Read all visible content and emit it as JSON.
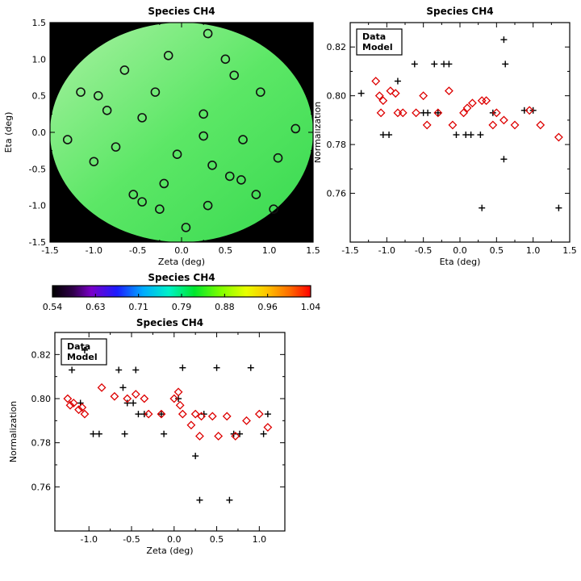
{
  "figure": {
    "background": "#ffffff",
    "accent_model_color": "#dd0000",
    "accent_data_color": "#000000"
  },
  "chart_data": [
    {
      "id": "map",
      "type": "scatter",
      "variant": "spatial-map",
      "title": "Species CH4",
      "xlabel": "Zeta (deg)",
      "ylabel": "Eta (deg)",
      "xlim": [
        -1.5,
        1.5
      ],
      "ylim": [
        -1.5,
        1.5
      ],
      "xticks": [
        -1.5,
        -1.0,
        -0.5,
        0.0,
        0.5,
        1.0,
        1.5
      ],
      "yticks": [
        -1.5,
        -1.0,
        -0.5,
        0.0,
        0.5,
        1.0,
        1.5
      ],
      "xdec": 1,
      "ydec": 1,
      "plot_bg": "#000000",
      "disk": {
        "cx": 0,
        "cy": 0,
        "r": 1.5,
        "gradient": [
          {
            "pos": 0,
            "color": "#a9f1a2"
          },
          {
            "pos": 0.5,
            "color": "#5ce766"
          },
          {
            "pos": 1,
            "color": "#37d94f"
          }
        ]
      },
      "series": [
        {
          "name": "Footprints",
          "marker": "circle",
          "color": "#111111",
          "points": [
            [
              0.3,
              1.35
            ],
            [
              -0.15,
              1.05
            ],
            [
              0.5,
              1.0
            ],
            [
              -0.65,
              0.85
            ],
            [
              0.6,
              0.78
            ],
            [
              -1.15,
              0.55
            ],
            [
              -0.95,
              0.5
            ],
            [
              -0.3,
              0.55
            ],
            [
              0.9,
              0.55
            ],
            [
              -0.85,
              0.3
            ],
            [
              0.25,
              0.25
            ],
            [
              -0.45,
              0.2
            ],
            [
              1.3,
              0.05
            ],
            [
              -1.3,
              -0.1
            ],
            [
              0.25,
              -0.05
            ],
            [
              0.7,
              -0.1
            ],
            [
              -0.75,
              -0.2
            ],
            [
              -0.05,
              -0.3
            ],
            [
              1.1,
              -0.35
            ],
            [
              -1.0,
              -0.4
            ],
            [
              0.35,
              -0.45
            ],
            [
              0.55,
              -0.6
            ],
            [
              0.68,
              -0.65
            ],
            [
              -0.2,
              -0.7
            ],
            [
              -0.55,
              -0.85
            ],
            [
              -0.45,
              -0.95
            ],
            [
              0.85,
              -0.85
            ],
            [
              -0.25,
              -1.05
            ],
            [
              0.3,
              -1.0
            ],
            [
              1.05,
              -1.05
            ],
            [
              0.05,
              -1.3
            ]
          ]
        }
      ]
    },
    {
      "id": "scatter-eta",
      "type": "scatter",
      "title": "Species CH4",
      "xlabel": "Eta (deg)",
      "ylabel": "Normalization",
      "xlim": [
        -1.5,
        1.5
      ],
      "ylim": [
        0.74,
        0.83
      ],
      "xticks": [
        -1.5,
        -1.0,
        -0.5,
        0.0,
        0.5,
        1.0,
        1.5
      ],
      "yticks": [
        0.76,
        0.78,
        0.8,
        0.82
      ],
      "xdec": 1,
      "ydec": 2,
      "legend": true,
      "series": [
        {
          "name": "Data",
          "marker": "plus",
          "color": "#000000",
          "points": [
            [
              -1.35,
              0.801
            ],
            [
              -1.05,
              0.784
            ],
            [
              -0.97,
              0.784
            ],
            [
              -0.85,
              0.806
            ],
            [
              -0.62,
              0.813
            ],
            [
              -0.5,
              0.793
            ],
            [
              -0.44,
              0.793
            ],
            [
              -0.35,
              0.813
            ],
            [
              -0.3,
              0.793
            ],
            [
              -0.22,
              0.813
            ],
            [
              -0.15,
              0.813
            ],
            [
              -0.05,
              0.784
            ],
            [
              0.08,
              0.784
            ],
            [
              0.15,
              0.784
            ],
            [
              0.28,
              0.784
            ],
            [
              0.3,
              0.754
            ],
            [
              0.45,
              0.793
            ],
            [
              0.6,
              0.823
            ],
            [
              0.62,
              0.813
            ],
            [
              0.6,
              0.774
            ],
            [
              0.88,
              0.794
            ],
            [
              1.0,
              0.794
            ],
            [
              1.35,
              0.754
            ]
          ]
        },
        {
          "name": "Model",
          "marker": "diamond",
          "color": "#dd0000",
          "points": [
            [
              -1.15,
              0.806
            ],
            [
              -1.1,
              0.8
            ],
            [
              -1.05,
              0.798
            ],
            [
              -1.08,
              0.793
            ],
            [
              -0.95,
              0.802
            ],
            [
              -0.88,
              0.801
            ],
            [
              -0.85,
              0.793
            ],
            [
              -0.78,
              0.793
            ],
            [
              -0.6,
              0.793
            ],
            [
              -0.5,
              0.8
            ],
            [
              -0.45,
              0.788
            ],
            [
              -0.3,
              0.793
            ],
            [
              -0.15,
              0.802
            ],
            [
              -0.1,
              0.788
            ],
            [
              0.05,
              0.793
            ],
            [
              0.1,
              0.795
            ],
            [
              0.17,
              0.797
            ],
            [
              0.3,
              0.798
            ],
            [
              0.36,
              0.798
            ],
            [
              0.45,
              0.788
            ],
            [
              0.5,
              0.793
            ],
            [
              0.6,
              0.79
            ],
            [
              0.75,
              0.788
            ],
            [
              0.95,
              0.794
            ],
            [
              1.1,
              0.788
            ],
            [
              1.35,
              0.783
            ]
          ]
        }
      ]
    },
    {
      "id": "colorbar",
      "type": "colorbar",
      "title": "Species CH4",
      "labels": [
        "0.54",
        "0.63",
        "0.71",
        "0.79",
        "0.88",
        "0.96",
        "1.04"
      ],
      "gradient": [
        {
          "pos": 0,
          "color": "#000000"
        },
        {
          "pos": 0.08,
          "color": "#30004a"
        },
        {
          "pos": 0.15,
          "color": "#7a00c8"
        },
        {
          "pos": 0.25,
          "color": "#1c1cff"
        },
        {
          "pos": 0.35,
          "color": "#00aaff"
        },
        {
          "pos": 0.45,
          "color": "#00f2c8"
        },
        {
          "pos": 0.55,
          "color": "#00e62e"
        },
        {
          "pos": 0.65,
          "color": "#7dff00"
        },
        {
          "pos": 0.75,
          "color": "#e8ff00"
        },
        {
          "pos": 0.83,
          "color": "#ffc400"
        },
        {
          "pos": 0.92,
          "color": "#ff6a00"
        },
        {
          "pos": 1,
          "color": "#ff0000"
        }
      ]
    },
    {
      "id": "scatter-zeta",
      "type": "scatter",
      "title": "Species CH4",
      "xlabel": "Zeta (deg)",
      "ylabel": "Normalization",
      "xlim": [
        -1.4,
        1.3
      ],
      "ylim": [
        0.74,
        0.83
      ],
      "xticks": [
        -1.0,
        -0.5,
        0.0,
        0.5,
        1.0
      ],
      "yticks": [
        0.76,
        0.78,
        0.8,
        0.82
      ],
      "xdec": 1,
      "ydec": 2,
      "legend": true,
      "series": [
        {
          "name": "Data",
          "marker": "plus",
          "color": "#000000",
          "points": [
            [
              -1.2,
              0.813
            ],
            [
              -1.1,
              0.798
            ],
            [
              -1.05,
              0.822
            ],
            [
              -0.95,
              0.784
            ],
            [
              -0.88,
              0.784
            ],
            [
              -0.65,
              0.813
            ],
            [
              -0.6,
              0.805
            ],
            [
              -0.58,
              0.784
            ],
            [
              -0.55,
              0.798
            ],
            [
              -0.48,
              0.798
            ],
            [
              -0.45,
              0.813
            ],
            [
              -0.42,
              0.793
            ],
            [
              -0.35,
              0.793
            ],
            [
              -0.15,
              0.793
            ],
            [
              -0.12,
              0.784
            ],
            [
              0.05,
              0.8
            ],
            [
              0.1,
              0.814
            ],
            [
              0.25,
              0.774
            ],
            [
              0.3,
              0.754
            ],
            [
              0.35,
              0.793
            ],
            [
              0.5,
              0.814
            ],
            [
              0.65,
              0.754
            ],
            [
              0.7,
              0.784
            ],
            [
              0.77,
              0.784
            ],
            [
              0.9,
              0.814
            ],
            [
              1.05,
              0.784
            ],
            [
              1.1,
              0.793
            ]
          ]
        },
        {
          "name": "Model",
          "marker": "diamond",
          "color": "#dd0000",
          "points": [
            [
              -1.25,
              0.8
            ],
            [
              -1.22,
              0.797
            ],
            [
              -1.18,
              0.798
            ],
            [
              -1.12,
              0.795
            ],
            [
              -1.08,
              0.796
            ],
            [
              -1.05,
              0.793
            ],
            [
              -0.85,
              0.805
            ],
            [
              -0.7,
              0.801
            ],
            [
              -0.55,
              0.8
            ],
            [
              -0.45,
              0.802
            ],
            [
              -0.35,
              0.8
            ],
            [
              -0.3,
              0.793
            ],
            [
              -0.15,
              0.793
            ],
            [
              0.0,
              0.8
            ],
            [
              0.05,
              0.803
            ],
            [
              0.07,
              0.797
            ],
            [
              0.1,
              0.793
            ],
            [
              0.2,
              0.788
            ],
            [
              0.25,
              0.793
            ],
            [
              0.3,
              0.783
            ],
            [
              0.32,
              0.792
            ],
            [
              0.45,
              0.792
            ],
            [
              0.52,
              0.783
            ],
            [
              0.62,
              0.792
            ],
            [
              0.72,
              0.783
            ],
            [
              0.85,
              0.79
            ],
            [
              1.0,
              0.793
            ],
            [
              1.1,
              0.787
            ]
          ]
        }
      ]
    }
  ]
}
